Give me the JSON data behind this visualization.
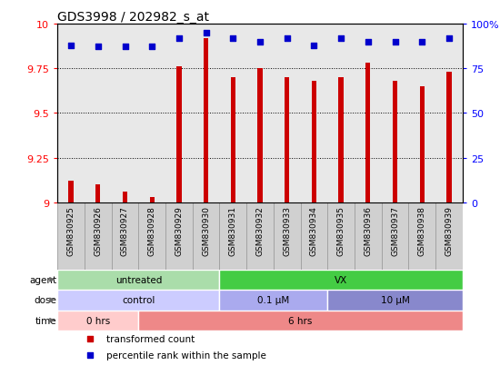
{
  "title": "GDS3998 / 202982_s_at",
  "samples": [
    "GSM830925",
    "GSM830926",
    "GSM830927",
    "GSM830928",
    "GSM830929",
    "GSM830930",
    "GSM830931",
    "GSM830932",
    "GSM830933",
    "GSM830934",
    "GSM830935",
    "GSM830936",
    "GSM830937",
    "GSM830938",
    "GSM830939"
  ],
  "transformed_count": [
    9.12,
    9.1,
    9.06,
    9.03,
    9.76,
    9.92,
    9.7,
    9.75,
    9.7,
    9.68,
    9.7,
    9.78,
    9.68,
    9.65,
    9.73
  ],
  "percentile_rank": [
    88,
    87,
    87,
    87,
    92,
    95,
    92,
    90,
    92,
    88,
    92,
    90,
    90,
    90,
    92
  ],
  "ylim": [
    9.0,
    10.0
  ],
  "yticks": [
    9.0,
    9.25,
    9.5,
    9.75,
    10.0
  ],
  "ytick_labels": [
    "9",
    "9.25",
    "9.5",
    "9.75",
    "10"
  ],
  "right_yticks": [
    0,
    25,
    50,
    75,
    100
  ],
  "right_ytick_labels": [
    "0",
    "25",
    "50",
    "75",
    "100%"
  ],
  "bar_color": "#cc0000",
  "dot_color": "#0000cc",
  "plot_bg": "#e8e8e8",
  "xtick_bg": "#d0d0d0",
  "agent_labels": [
    {
      "text": "untreated",
      "start": 0,
      "end": 6,
      "color": "#aaddaa"
    },
    {
      "text": "VX",
      "start": 6,
      "end": 15,
      "color": "#44cc44"
    }
  ],
  "dose_labels": [
    {
      "text": "control",
      "start": 0,
      "end": 6,
      "color": "#ccccff"
    },
    {
      "text": "0.1 μM",
      "start": 6,
      "end": 10,
      "color": "#aaaaee"
    },
    {
      "text": "10 μM",
      "start": 10,
      "end": 15,
      "color": "#8888cc"
    }
  ],
  "time_labels": [
    {
      "text": "0 hrs",
      "start": 0,
      "end": 3,
      "color": "#ffcccc"
    },
    {
      "text": "6 hrs",
      "start": 3,
      "end": 15,
      "color": "#ee8888"
    }
  ],
  "legend_items": [
    {
      "color": "#cc0000",
      "label": "transformed count"
    },
    {
      "color": "#0000cc",
      "label": "percentile rank within the sample"
    }
  ]
}
